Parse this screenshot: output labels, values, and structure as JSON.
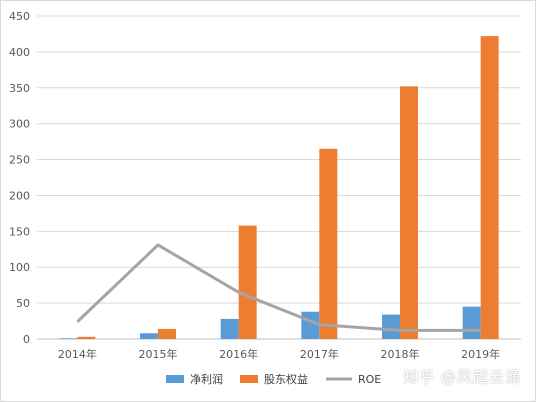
{
  "chart_data": {
    "type": "bar",
    "categories": [
      "2014年",
      "2015年",
      "2016年",
      "2017年",
      "2018年",
      "2019年"
    ],
    "series": [
      {
        "name": "净利润",
        "type": "bar",
        "color": "#5b9bd5",
        "values": [
          1,
          8,
          28,
          38,
          34,
          45
        ]
      },
      {
        "name": "股东权益",
        "type": "bar",
        "color": "#ed7d31",
        "values": [
          3,
          14,
          158,
          265,
          352,
          422
        ]
      },
      {
        "name": "ROE",
        "type": "line",
        "color": "#a5a5a5",
        "values": [
          24,
          131,
          65,
          20,
          12,
          12
        ]
      }
    ],
    "ylim": [
      0,
      450
    ],
    "yticks": [
      "0",
      "50",
      "100",
      "150",
      "200",
      "250",
      "300",
      "350",
      "400",
      "450"
    ],
    "grid": true,
    "legend_position": "bottom"
  },
  "watermark": "知乎 @风起云涌"
}
